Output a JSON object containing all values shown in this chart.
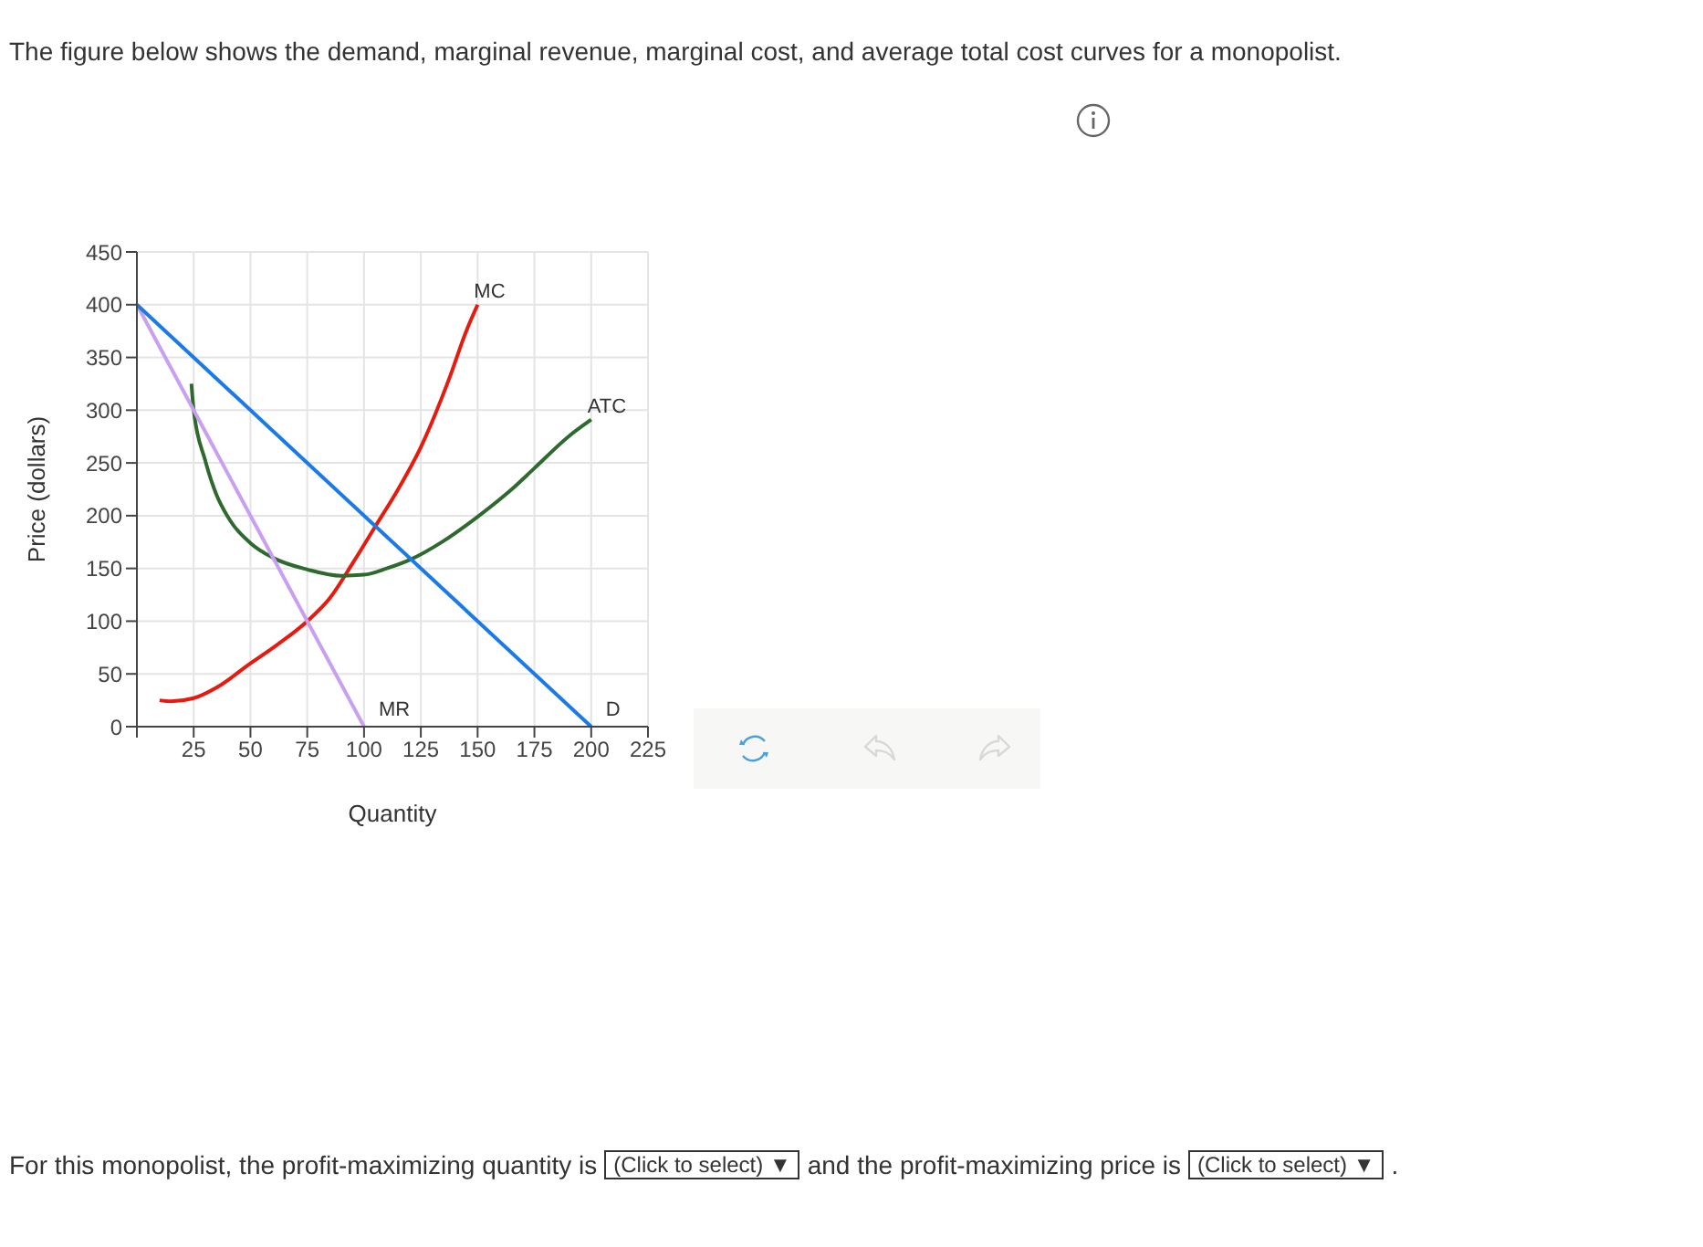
{
  "chart_data": {
    "type": "line",
    "title": "The figure below shows the demand, marginal revenue, marginal cost, and average total cost curves for a monopolist.",
    "xlabel": "Quantity",
    "ylabel": "Price (dollars)",
    "xlim": [
      0,
      225
    ],
    "xticks": [
      {
        "value": 0,
        "label": null
      },
      25,
      50,
      75,
      100,
      125,
      150,
      175,
      200,
      225
    ],
    "ylim": [
      0,
      450
    ],
    "yticks": [
      0,
      50,
      100,
      150,
      200,
      250,
      300,
      350,
      400,
      450
    ],
    "grid": true,
    "marker": "none",
    "line_style": "solid",
    "series": [
      {
        "name": "MC",
        "color": "#e8190e",
        "x": [
          10,
          15,
          25,
          35,
          50,
          62,
          75,
          85,
          95,
          105,
          115,
          125,
          137.5,
          145,
          150
        ],
        "values": [
          25,
          24,
          27,
          37,
          60,
          78,
          100,
          122,
          155,
          190,
          225,
          265,
          330,
          375,
          400
        ]
      },
      {
        "name": "ATC",
        "color": "#2e6a2e",
        "x": [
          24,
          25,
          30,
          35,
          40,
          50,
          60,
          75,
          90,
          100,
          110,
          120,
          135,
          150,
          165,
          175,
          190,
          200
        ],
        "values": [
          325,
          300,
          253,
          220,
          199,
          174,
          160,
          149,
          143,
          144,
          150,
          158,
          176,
          199,
          225,
          245,
          275,
          291
        ]
      },
      {
        "name": "MR",
        "color": "#c9a0f0",
        "x": [
          0,
          100
        ],
        "values": [
          400,
          0
        ]
      },
      {
        "name": "D",
        "color": "#1a7ae8",
        "x": [
          0,
          200
        ],
        "values": [
          400,
          0
        ]
      }
    ],
    "annotations": [
      "For this monopolist, the profit-maximizing quantity is",
      "(Click to select) ▼",
      "and the profit-maximizing price is",
      "(Click to select) ▼",
      "."
    ]
  }
}
